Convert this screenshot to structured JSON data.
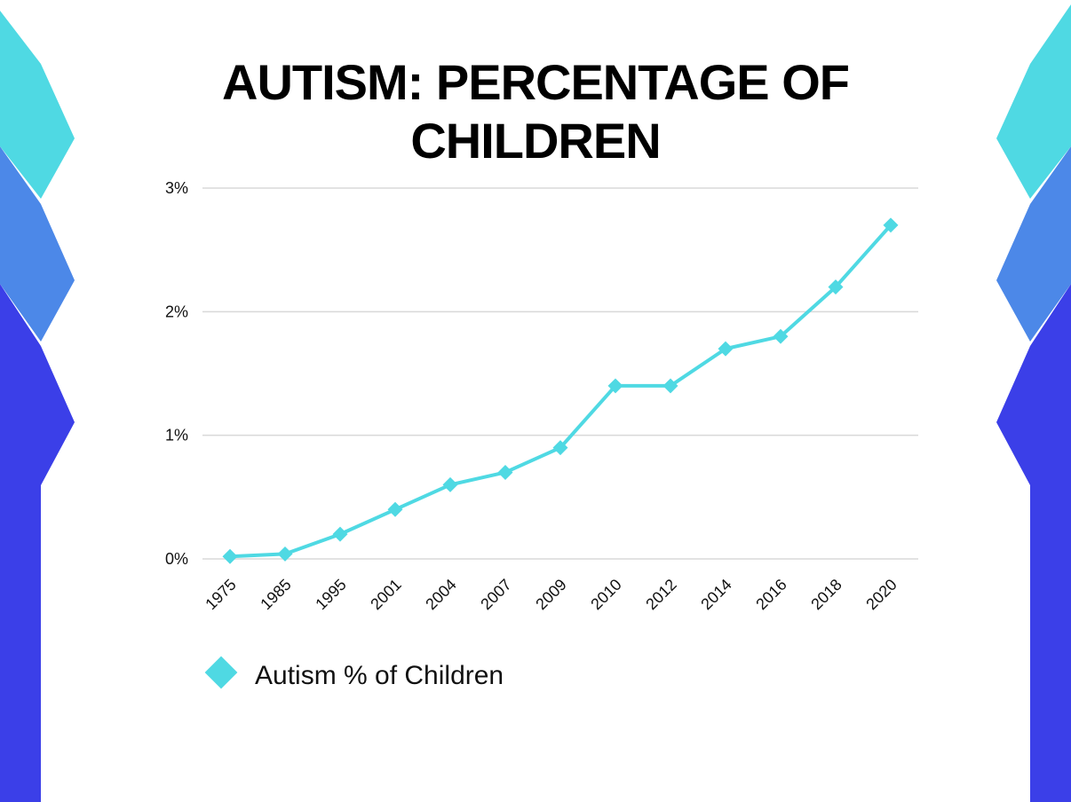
{
  "colors": {
    "line": "#4fd9e3",
    "gridline": "#d9d9d9",
    "deco_cyan": "#4fd9e3",
    "deco_light_blue": "#4c88e8",
    "deco_blue": "#3b3fe8"
  },
  "chart_data": {
    "type": "line",
    "title": "AUTISM: PERCENTAGE OF CHILDREN",
    "xlabel": "",
    "ylabel": "",
    "categories": [
      "1975",
      "1985",
      "1995",
      "2001",
      "2004",
      "2007",
      "2009",
      "2010",
      "2012",
      "2014",
      "2016",
      "2018",
      "2020"
    ],
    "series": [
      {
        "name": "Autism % of Children",
        "values": [
          0.02,
          0.04,
          0.2,
          0.4,
          0.6,
          0.7,
          0.9,
          1.4,
          1.4,
          1.7,
          1.8,
          2.2,
          2.7
        ]
      }
    ],
    "ylim": [
      0,
      3
    ],
    "yticks": [
      0,
      1,
      2,
      3
    ],
    "ytick_labels": [
      "0%",
      "1%",
      "2%",
      "3%"
    ],
    "grid": true,
    "legend": "bottom-left",
    "marker": "diamond"
  }
}
